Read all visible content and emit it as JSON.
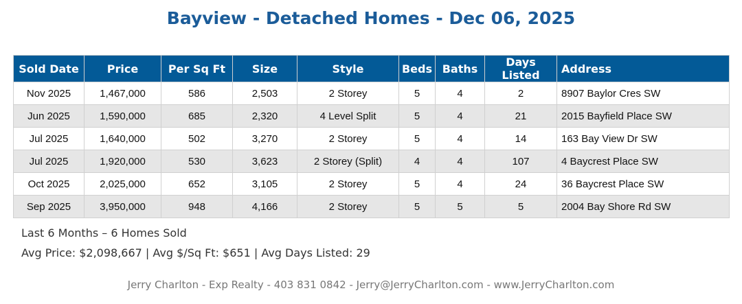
{
  "title": "Bayview - Detached Homes - Dec 06, 2025",
  "colors": {
    "header_bg": "#035a97",
    "title": "#1b5c99",
    "alt_row": "#e6e6e6"
  },
  "table": {
    "headers": [
      "Sold Date",
      "Price",
      "Per Sq Ft",
      "Size",
      "Style",
      "Beds",
      "Baths",
      "Days Listed",
      "Address"
    ],
    "rows": [
      [
        "Nov 2025",
        "1,467,000",
        "586",
        "2,503",
        "2 Storey",
        "5",
        "4",
        "2",
        "8907 Baylor Cres SW"
      ],
      [
        "Jun 2025",
        "1,590,000",
        "685",
        "2,320",
        "4 Level Split",
        "5",
        "4",
        "21",
        "2015 Bayfield Place SW"
      ],
      [
        "Jul 2025",
        "1,640,000",
        "502",
        "3,270",
        "2 Storey",
        "5",
        "4",
        "14",
        "163 Bay View Dr SW"
      ],
      [
        "Jul 2025",
        "1,920,000",
        "530",
        "3,623",
        "2 Storey (Split)",
        "4",
        "4",
        "107",
        "4 Baycrest Place SW"
      ],
      [
        "Oct 2025",
        "2,025,000",
        "652",
        "3,105",
        "2 Storey",
        "5",
        "4",
        "24",
        "36 Baycrest Place SW"
      ],
      [
        "Sep 2025",
        "3,950,000",
        "948",
        "4,166",
        "2 Storey",
        "5",
        "5",
        "5",
        "2004 Bay Shore Rd SW"
      ]
    ]
  },
  "summary": {
    "line1": "Last 6 Months – 6 Homes Sold",
    "line2": "Avg Price: $2,098,667 | Avg $/Sq Ft: $651 | Avg Days Listed: 29"
  },
  "footer": "Jerry Charlton - Exp Realty - 403 831 0842 - Jerry@JerryCharlton.com - www.JerryCharlton.com"
}
